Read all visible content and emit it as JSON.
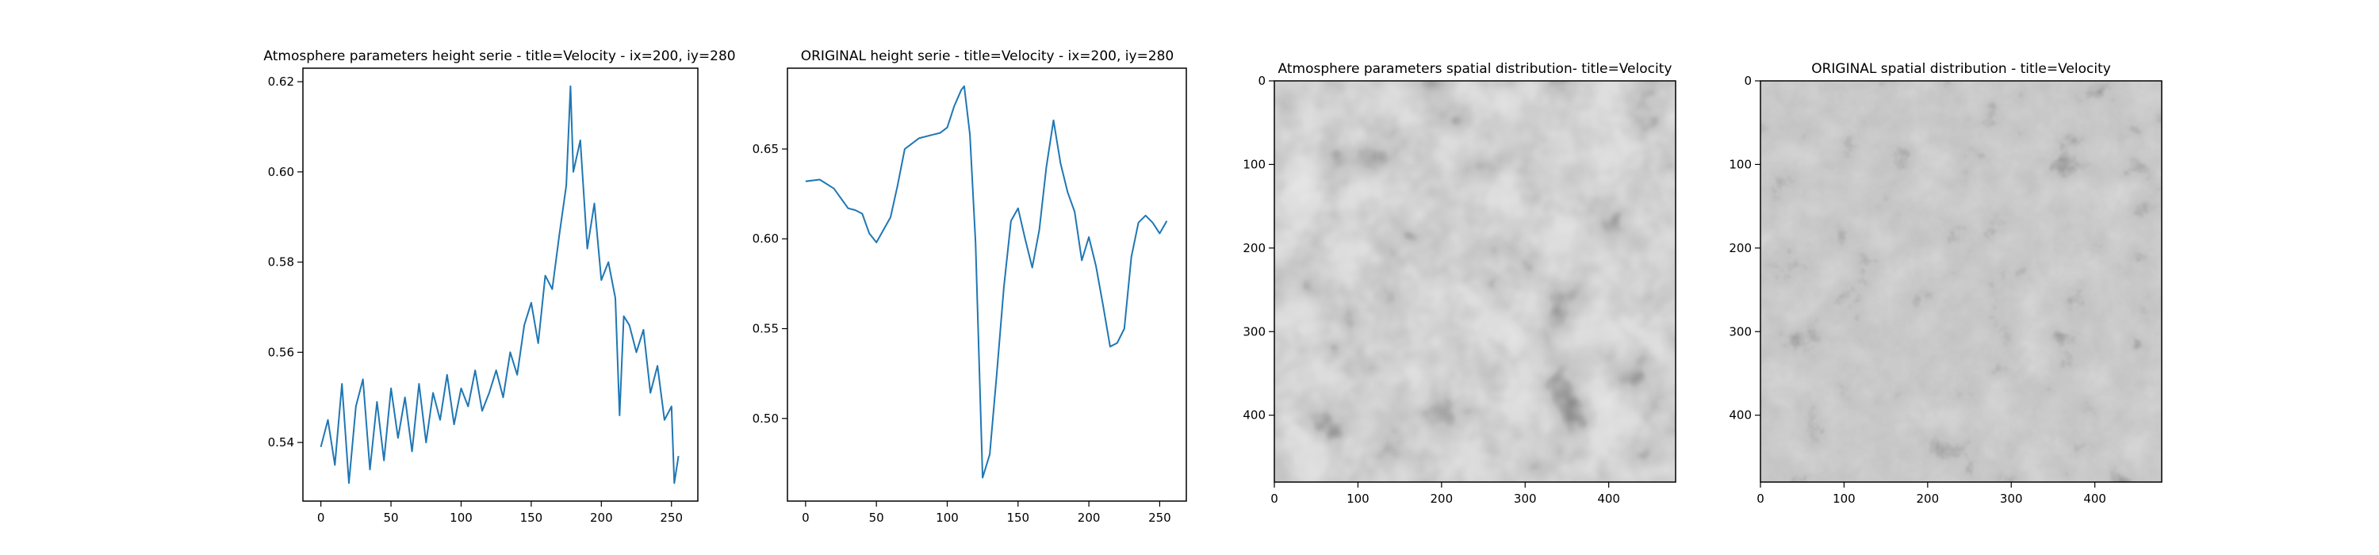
{
  "chart_data": [
    {
      "type": "line",
      "title": "Atmosphere parameters height serie - title=Velocity - ix=200, iy=280",
      "xlim": [
        -12.8,
        268.8
      ],
      "ylim": [
        0.527,
        0.623
      ],
      "xticks": [
        0,
        50,
        100,
        150,
        200,
        250
      ],
      "yticks": [
        0.54,
        0.56,
        0.58,
        0.6,
        0.62
      ],
      "yticklabels": [
        "0.54",
        "0.56",
        "0.58",
        "0.60",
        "0.62"
      ],
      "color": "#1f77b4",
      "x": [
        0,
        5,
        10,
        15,
        20,
        25,
        30,
        35,
        40,
        45,
        50,
        55,
        60,
        65,
        70,
        75,
        80,
        85,
        90,
        95,
        100,
        105,
        110,
        115,
        120,
        125,
        130,
        135,
        140,
        145,
        150,
        155,
        160,
        165,
        170,
        175,
        178,
        180,
        185,
        190,
        195,
        200,
        205,
        210,
        213,
        216,
        220,
        225,
        230,
        235,
        240,
        245,
        250,
        252,
        255
      ],
      "y": [
        0.539,
        0.545,
        0.535,
        0.553,
        0.531,
        0.548,
        0.554,
        0.534,
        0.549,
        0.536,
        0.552,
        0.541,
        0.55,
        0.538,
        0.553,
        0.54,
        0.551,
        0.545,
        0.555,
        0.544,
        0.552,
        0.548,
        0.556,
        0.547,
        0.551,
        0.556,
        0.55,
        0.56,
        0.555,
        0.566,
        0.571,
        0.562,
        0.577,
        0.574,
        0.586,
        0.597,
        0.619,
        0.6,
        0.607,
        0.583,
        0.593,
        0.576,
        0.58,
        0.572,
        0.546,
        0.568,
        0.566,
        0.56,
        0.565,
        0.551,
        0.557,
        0.545,
        0.548,
        0.531,
        0.537
      ]
    },
    {
      "type": "line",
      "title": "ORIGINAL height serie - title=Velocity - ix=200, iy=280",
      "xlim": [
        -12.8,
        268.8
      ],
      "ylim": [
        0.454,
        0.695
      ],
      "xticks": [
        0,
        50,
        100,
        150,
        200,
        250
      ],
      "yticks": [
        0.5,
        0.55,
        0.6,
        0.65
      ],
      "yticklabels": [
        "0.50",
        "0.55",
        "0.60",
        "0.65"
      ],
      "color": "#1f77b4",
      "x": [
        0,
        10,
        20,
        30,
        35,
        40,
        45,
        50,
        55,
        60,
        65,
        70,
        80,
        90,
        95,
        100,
        105,
        110,
        112,
        116,
        120,
        125,
        130,
        135,
        140,
        145,
        150,
        155,
        160,
        165,
        170,
        175,
        180,
        185,
        190,
        195,
        200,
        205,
        210,
        215,
        220,
        225,
        230,
        235,
        240,
        245,
        250,
        255
      ],
      "y": [
        0.632,
        0.633,
        0.628,
        0.617,
        0.616,
        0.614,
        0.603,
        0.598,
        0.605,
        0.612,
        0.63,
        0.65,
        0.656,
        0.658,
        0.659,
        0.662,
        0.674,
        0.683,
        0.685,
        0.658,
        0.598,
        0.467,
        0.48,
        0.525,
        0.573,
        0.61,
        0.617,
        0.6,
        0.584,
        0.605,
        0.64,
        0.666,
        0.642,
        0.626,
        0.615,
        0.588,
        0.601,
        0.585,
        0.563,
        0.54,
        0.542,
        0.55,
        0.59,
        0.609,
        0.613,
        0.609,
        0.603,
        0.61
      ]
    },
    {
      "type": "heatmap",
      "title": "Atmosphere parameters spatial distribution- title=Velocity",
      "colormap": "gray",
      "xlim": [
        0,
        480
      ],
      "ylim": [
        480,
        0
      ],
      "xticks": [
        0,
        100,
        200,
        300,
        400
      ],
      "yticks": [
        0,
        100,
        200,
        300,
        400
      ]
    },
    {
      "type": "heatmap",
      "title": "ORIGINAL spatial distribution - title=Velocity",
      "colormap": "gray",
      "xlim": [
        0,
        480
      ],
      "ylim": [
        480,
        0
      ],
      "xticks": [
        0,
        100,
        200,
        300,
        400
      ],
      "yticks": [
        0,
        100,
        200,
        300,
        400
      ]
    }
  ]
}
